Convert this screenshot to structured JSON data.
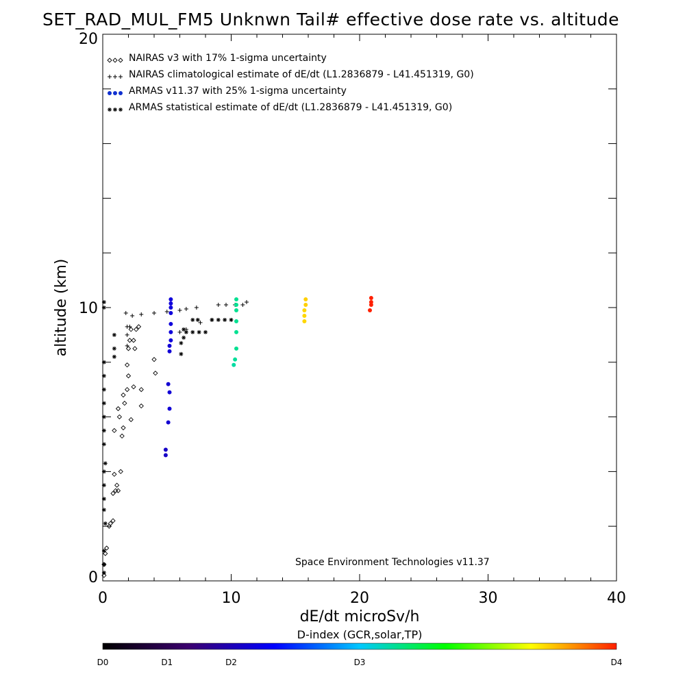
{
  "chart_data": {
    "type": "scatter",
    "title": "SET_RAD_MUL_FM5 Unknwn Tail#  effective dose rate vs. altitude",
    "xlabel": "dE/dt microSv/h",
    "ylabel": "altitude (km)",
    "xlim": [
      0,
      40
    ],
    "ylim": [
      0,
      20
    ],
    "x_ticks": [
      "0",
      "10",
      "20",
      "30",
      "40"
    ],
    "y_ticks": [
      "0",
      "10",
      "20"
    ],
    "grid": false,
    "legend_position": "top-left",
    "credit": "Space Environment Technologies v11.37",
    "colorbar": {
      "label": "D-index (GCR,solar,TP)",
      "ticks": [
        {
          "label": "D0",
          "value": 0
        },
        {
          "label": "D1",
          "value": 5
        },
        {
          "label": "D2",
          "value": 10
        },
        {
          "label": "D3",
          "value": 20
        },
        {
          "label": "D4",
          "value": 40
        }
      ],
      "colors": [
        "#000000",
        "#3b006e",
        "#0000ff",
        "#00c8ff",
        "#00ff00",
        "#ffff00",
        "#ff2000"
      ]
    },
    "series": [
      {
        "name": "NAIRAS v3 with 17% 1-sigma uncertainty",
        "marker": "diamond",
        "color": "#000000",
        "points": [
          [
            0.1,
            0.2
          ],
          [
            0.1,
            0.6
          ],
          [
            0.2,
            1.0
          ],
          [
            0.3,
            1.2
          ],
          [
            0.5,
            2.0
          ],
          [
            0.6,
            2.1
          ],
          [
            0.8,
            2.2
          ],
          [
            0.8,
            3.2
          ],
          [
            1.0,
            3.3
          ],
          [
            1.1,
            3.5
          ],
          [
            1.2,
            3.3
          ],
          [
            0.9,
            3.9
          ],
          [
            1.4,
            4.0
          ],
          [
            0.9,
            5.5
          ],
          [
            1.5,
            5.3
          ],
          [
            1.6,
            5.6
          ],
          [
            1.3,
            6.0
          ],
          [
            1.2,
            6.3
          ],
          [
            1.7,
            6.5
          ],
          [
            1.6,
            6.8
          ],
          [
            2.2,
            5.9
          ],
          [
            3.0,
            6.4
          ],
          [
            1.9,
            7.0
          ],
          [
            2.4,
            7.1
          ],
          [
            3.0,
            7.0
          ],
          [
            2.0,
            7.5
          ],
          [
            4.1,
            7.6
          ],
          [
            1.9,
            7.9
          ],
          [
            4.0,
            8.1
          ],
          [
            2.0,
            8.5
          ],
          [
            2.5,
            8.5
          ],
          [
            2.1,
            8.8
          ],
          [
            2.4,
            8.8
          ],
          [
            2.2,
            9.2
          ],
          [
            2.6,
            9.2
          ],
          [
            2.8,
            9.3
          ]
        ]
      },
      {
        "name": "NAIRAS climatological estimate of dE/dt (L1.2836879 - L41.451319, G0)",
        "marker": "plus",
        "color": "#000000",
        "points": [
          [
            1.9,
            8.6
          ],
          [
            1.9,
            9.0
          ],
          [
            1.9,
            9.3
          ],
          [
            2.1,
            9.3
          ],
          [
            1.8,
            9.8
          ],
          [
            2.3,
            9.7
          ],
          [
            3.0,
            9.75
          ],
          [
            4.0,
            9.8
          ],
          [
            5.0,
            9.85
          ],
          [
            6.0,
            9.9
          ],
          [
            6.5,
            9.95
          ],
          [
            7.3,
            10.0
          ],
          [
            7.6,
            9.45
          ],
          [
            8.5,
            9.55
          ],
          [
            9.0,
            10.1
          ],
          [
            9.6,
            10.1
          ],
          [
            10.3,
            10.1
          ],
          [
            10.9,
            10.1
          ],
          [
            11.2,
            10.2
          ],
          [
            6.0,
            9.1
          ],
          [
            6.5,
            9.2
          ]
        ]
      },
      {
        "name": "ARMAS v11.37 with 25% 1-sigma uncertainty",
        "marker": "dot",
        "color": "#1030d0",
        "points": [
          [
            4.9,
            4.6
          ],
          [
            4.9,
            4.8
          ],
          [
            5.1,
            5.8
          ],
          [
            5.2,
            6.3
          ],
          [
            5.2,
            6.9
          ],
          [
            5.1,
            7.2
          ],
          [
            5.2,
            8.4
          ],
          [
            5.2,
            8.6
          ],
          [
            5.3,
            8.8
          ],
          [
            5.3,
            9.1
          ],
          [
            5.3,
            9.4
          ],
          [
            5.3,
            9.8
          ],
          [
            5.3,
            10.0
          ],
          [
            5.3,
            10.15
          ],
          [
            5.3,
            10.3
          ],
          [
            10.2,
            7.9
          ],
          [
            10.3,
            8.1
          ],
          [
            10.4,
            8.5
          ],
          [
            10.4,
            9.1
          ],
          [
            10.4,
            9.5
          ],
          [
            10.4,
            9.9
          ],
          [
            10.4,
            10.1
          ],
          [
            10.4,
            10.3
          ],
          [
            15.7,
            9.5
          ],
          [
            15.7,
            9.7
          ],
          [
            15.7,
            9.9
          ],
          [
            15.8,
            10.1
          ],
          [
            15.8,
            10.3
          ],
          [
            20.8,
            9.9
          ],
          [
            20.9,
            10.1
          ],
          [
            20.9,
            10.2
          ],
          [
            20.9,
            10.35
          ]
        ]
      },
      {
        "name": "ARMAS statistical estimate of dE/dt (L1.2836879 - L41.451319, G0)",
        "marker": "asterisk",
        "color": "#000000",
        "points": [
          [
            0.1,
            0.3
          ],
          [
            0.1,
            0.6
          ],
          [
            0.1,
            1.1
          ],
          [
            0.2,
            2.1
          ],
          [
            0.1,
            2.6
          ],
          [
            0.1,
            3.0
          ],
          [
            0.1,
            3.5
          ],
          [
            0.1,
            4.0
          ],
          [
            0.2,
            4.3
          ],
          [
            0.1,
            5.0
          ],
          [
            0.1,
            5.5
          ],
          [
            0.1,
            6.0
          ],
          [
            0.1,
            6.5
          ],
          [
            0.1,
            7.0
          ],
          [
            0.1,
            7.5
          ],
          [
            0.1,
            8.0
          ],
          [
            0.1,
            10.0
          ],
          [
            0.1,
            10.2
          ],
          [
            0.9,
            8.2
          ],
          [
            0.9,
            8.5
          ],
          [
            0.9,
            9.0
          ],
          [
            6.1,
            8.3
          ],
          [
            6.1,
            8.7
          ],
          [
            6.3,
            8.9
          ],
          [
            6.3,
            9.2
          ],
          [
            6.5,
            9.1
          ],
          [
            7.0,
            9.1
          ],
          [
            7.5,
            9.1
          ],
          [
            8.0,
            9.1
          ],
          [
            7.0,
            9.55
          ],
          [
            7.4,
            9.55
          ],
          [
            8.5,
            9.55
          ],
          [
            9.0,
            9.55
          ],
          [
            9.5,
            9.55
          ],
          [
            10.0,
            9.55
          ]
        ]
      }
    ]
  }
}
